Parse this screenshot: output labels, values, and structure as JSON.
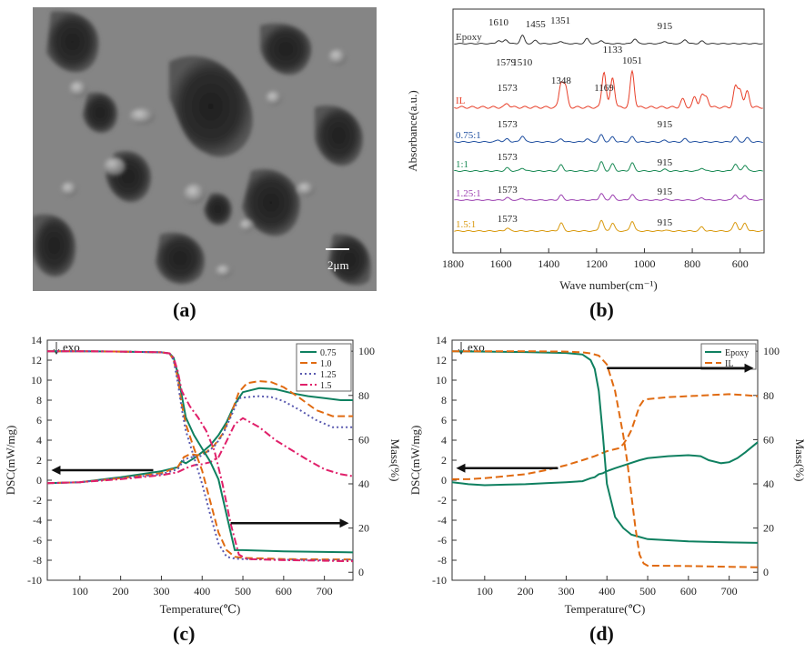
{
  "panels": {
    "a": {
      "label": "(a)",
      "scale_bar": "2μm"
    },
    "b": {
      "label": "(b)"
    },
    "c": {
      "label": "(c)"
    },
    "d": {
      "label": "(d)"
    }
  },
  "chart_data": [
    {
      "id": "b",
      "type": "line",
      "xlabel": "Wave number(cm⁻¹)",
      "ylabel": "Absorbance(a.u.)",
      "xlim": [
        1800,
        500
      ],
      "xticks": [
        1800,
        1600,
        1400,
        1200,
        1000,
        800,
        600
      ],
      "series": [
        {
          "name": "Epoxy",
          "color": "#333333",
          "offset": 0,
          "peaks": [
            [
              1610,
              0.4
            ],
            [
              1579,
              0.5
            ],
            [
              1510,
              1.0
            ],
            [
              1455,
              0.4
            ],
            [
              1351,
              0.3
            ],
            [
              1240,
              0.6
            ],
            [
              1180,
              0.4
            ],
            [
              1040,
              0.6
            ],
            [
              915,
              0.3
            ],
            [
              830,
              0.5
            ],
            [
              760,
              0.3
            ]
          ],
          "annotations": [
            "1610",
            "1579",
            "1510",
            "1455",
            "1351",
            "915"
          ]
        },
        {
          "name": "IL",
          "color": "#e8402a",
          "offset": 1,
          "peaks": [
            [
              1573,
              0.2
            ],
            [
              1348,
              1.2
            ],
            [
              1330,
              1.0
            ],
            [
              1169,
              1.8
            ],
            [
              1133,
              1.5
            ],
            [
              1051,
              1.8
            ],
            [
              840,
              0.4
            ],
            [
              790,
              0.5
            ],
            [
              760,
              0.6
            ],
            [
              740,
              0.5
            ],
            [
              620,
              1.0
            ],
            [
              600,
              0.9
            ],
            [
              570,
              0.8
            ]
          ],
          "annotations": [
            "1348",
            "1573",
            "1133",
            "1169",
            "1051"
          ]
        },
        {
          "name": "0.75:1",
          "color": "#1f4fa0",
          "offset": 2,
          "peaks": [
            [
              1610,
              0.2
            ],
            [
              1573,
              0.3
            ],
            [
              1510,
              0.6
            ],
            [
              1348,
              0.3
            ],
            [
              1240,
              0.3
            ],
            [
              1180,
              0.7
            ],
            [
              1133,
              0.5
            ],
            [
              1051,
              0.5
            ],
            [
              915,
              0.15
            ],
            [
              830,
              0.3
            ],
            [
              620,
              0.5
            ],
            [
              570,
              0.4
            ]
          ],
          "annotations": [
            "1573",
            "915"
          ]
        },
        {
          "name": "1:1",
          "color": "#1a8a55",
          "offset": 3,
          "peaks": [
            [
              1573,
              0.3
            ],
            [
              1510,
              0.3
            ],
            [
              1348,
              0.6
            ],
            [
              1180,
              0.9
            ],
            [
              1133,
              0.7
            ],
            [
              1051,
              0.8
            ],
            [
              915,
              0.15
            ],
            [
              760,
              0.3
            ],
            [
              620,
              0.7
            ],
            [
              580,
              0.6
            ]
          ],
          "annotations": [
            "1573",
            "915"
          ]
        },
        {
          "name": "1.25:1",
          "color": "#9b3fb0",
          "offset": 4,
          "peaks": [
            [
              1573,
              0.3
            ],
            [
              1510,
              0.2
            ],
            [
              1348,
              0.6
            ],
            [
              1180,
              0.8
            ],
            [
              1133,
              0.6
            ],
            [
              1051,
              0.7
            ],
            [
              915,
              0.1
            ],
            [
              760,
              0.3
            ],
            [
              620,
              0.7
            ],
            [
              580,
              0.6
            ]
          ],
          "annotations": [
            "1573",
            "915"
          ]
        },
        {
          "name": "1.5:1",
          "color": "#d99a10",
          "offset": 5,
          "peaks": [
            [
              1573,
              0.3
            ],
            [
              1348,
              0.8
            ],
            [
              1180,
              1.1
            ],
            [
              1133,
              0.8
            ],
            [
              1051,
              1.0
            ],
            [
              915,
              0.1
            ],
            [
              760,
              0.4
            ],
            [
              620,
              0.9
            ],
            [
              580,
              0.8
            ]
          ],
          "annotations": [
            "1573",
            "915"
          ]
        }
      ]
    },
    {
      "id": "c",
      "type": "line",
      "xlabel": "Temperature(℃)",
      "ylabel": "DSC(mW/mg)",
      "ylabel2": "Mass(%)",
      "xlim": [
        20,
        770
      ],
      "ylim": [
        -10,
        14
      ],
      "ylim2": [
        -3.6,
        105
      ],
      "xticks": [
        100,
        200,
        300,
        400,
        500,
        600,
        700
      ],
      "yticks": [
        -10,
        -8,
        -6,
        -4,
        -2,
        0,
        2,
        4,
        6,
        8,
        10,
        12,
        14
      ],
      "yticks2": [
        0,
        20,
        40,
        60,
        80,
        100
      ],
      "annotation": "exo",
      "legend": {
        "position": "top-right",
        "entries": [
          "0.75",
          "1.0",
          "1.25",
          "1.5"
        ]
      },
      "dsc_series": [
        {
          "name": "0.75",
          "color": "#0f8060",
          "dash": "",
          "x": [
            20,
            100,
            200,
            300,
            340,
            350,
            360,
            380,
            400,
            420,
            440,
            460,
            480,
            500,
            540,
            580,
            620,
            660,
            700,
            740,
            770
          ],
          "y": [
            -0.3,
            -0.2,
            0.3,
            0.9,
            1.3,
            1.9,
            1.7,
            2.2,
            2.8,
            3.5,
            4.5,
            5.8,
            7.6,
            8.8,
            9.2,
            9.1,
            8.7,
            8.4,
            8.2,
            8.0,
            8.0
          ]
        },
        {
          "name": "1.0",
          "color": "#e06a10",
          "dash": "8,4",
          "x": [
            20,
            100,
            200,
            300,
            340,
            355,
            370,
            390,
            410,
            430,
            450,
            470,
            490,
            510,
            540,
            570,
            600,
            640,
            680,
            720,
            770
          ],
          "y": [
            -0.3,
            -0.2,
            0.2,
            0.7,
            1.3,
            2.3,
            2.6,
            2.5,
            2.8,
            3.5,
            4.6,
            6.5,
            8.8,
            9.7,
            9.9,
            9.8,
            9.3,
            8.2,
            7.0,
            6.4,
            6.4
          ]
        },
        {
          "name": "1.25",
          "color": "#5a5ab0",
          "dash": "2,3",
          "x": [
            20,
            100,
            200,
            300,
            340,
            355,
            370,
            390,
            410,
            430,
            450,
            470,
            490,
            510,
            540,
            570,
            600,
            640,
            680,
            720,
            770
          ],
          "y": [
            -0.3,
            -0.2,
            0.2,
            0.6,
            1.1,
            2.0,
            2.3,
            2.3,
            2.7,
            3.4,
            4.5,
            6.3,
            8.2,
            8.3,
            8.4,
            8.3,
            7.9,
            7.0,
            6.0,
            5.3,
            5.3
          ]
        },
        {
          "name": "1.5",
          "color": "#e0206a",
          "dash": "8,3,2,3",
          "x": [
            20,
            100,
            200,
            300,
            340,
            360,
            380,
            400,
            420,
            440,
            460,
            480,
            500,
            540,
            580,
            620,
            660,
            700,
            740,
            770
          ],
          "y": [
            -0.3,
            -0.2,
            0.1,
            0.5,
            0.8,
            1.2,
            1.5,
            1.6,
            1.8,
            2.3,
            3.9,
            5.6,
            6.2,
            5.3,
            4.0,
            3.0,
            2.0,
            1.1,
            0.6,
            0.4
          ]
        }
      ],
      "mass_series": [
        {
          "name": "0.75",
          "color": "#0f8060",
          "dash": "",
          "x": [
            20,
            100,
            200,
            300,
            320,
            330,
            340,
            350,
            360,
            380,
            400,
            420,
            440,
            460,
            480,
            500,
            600,
            700,
            770
          ],
          "y": [
            100,
            100,
            99.8,
            99.5,
            99,
            97,
            90,
            80,
            70,
            62,
            56,
            50,
            42,
            26,
            10,
            10,
            9.5,
            9.2,
            9
          ]
        },
        {
          "name": "1.0",
          "color": "#e06a10",
          "dash": "8,4",
          "x": [
            20,
            100,
            200,
            300,
            320,
            330,
            340,
            350,
            360,
            380,
            400,
            420,
            440,
            460,
            480,
            500,
            600,
            700,
            770
          ],
          "y": [
            100,
            100,
            99.8,
            99.5,
            99,
            96,
            88,
            76,
            67,
            56,
            46,
            32,
            18,
            10,
            7,
            6.5,
            6,
            5.8,
            5.8
          ]
        },
        {
          "name": "1.25",
          "color": "#5a5ab0",
          "dash": "2,3",
          "x": [
            20,
            100,
            200,
            300,
            320,
            330,
            340,
            350,
            360,
            380,
            400,
            420,
            440,
            460,
            480,
            500,
            600,
            700,
            770
          ],
          "y": [
            100,
            100,
            99.8,
            99.5,
            99,
            96,
            86,
            74,
            64,
            52,
            40,
            26,
            13,
            7,
            6.2,
            6,
            5.7,
            5.5,
            5.5
          ]
        },
        {
          "name": "1.5",
          "color": "#e0206a",
          "dash": "8,3,2,3",
          "x": [
            20,
            100,
            200,
            300,
            320,
            330,
            340,
            350,
            370,
            390,
            410,
            430,
            450,
            470,
            490,
            510,
            600,
            700,
            770
          ],
          "y": [
            100,
            100,
            99.8,
            99.5,
            99,
            97,
            91,
            82,
            75,
            70,
            64,
            55,
            40,
            22,
            8,
            6,
            5.5,
            5.2,
            5
          ]
        }
      ],
      "arrows": [
        {
          "direction": "left"
        },
        {
          "direction": "right"
        }
      ]
    },
    {
      "id": "d",
      "type": "line",
      "xlabel": "Temperature(℃)",
      "ylabel": "DSC(mW/mg)",
      "ylabel2": "Mass(%)",
      "xlim": [
        20,
        770
      ],
      "ylim": [
        -10,
        14
      ],
      "ylim2": [
        -3.6,
        105
      ],
      "xticks": [
        100,
        200,
        300,
        400,
        500,
        600,
        700
      ],
      "yticks": [
        -10,
        -8,
        -6,
        -4,
        -2,
        0,
        2,
        4,
        6,
        8,
        10,
        12,
        14
      ],
      "yticks2": [
        0,
        20,
        40,
        60,
        80,
        100
      ],
      "annotation": "exo",
      "legend": {
        "position": "top-right",
        "entries": [
          "Epoxy",
          "IL"
        ]
      },
      "dsc_series": [
        {
          "name": "Epoxy",
          "color": "#0f8060",
          "dash": "",
          "x": [
            20,
            60,
            100,
            150,
            200,
            250,
            300,
            340,
            360,
            370,
            380,
            390,
            400,
            420,
            450,
            480,
            500,
            550,
            600,
            630,
            650,
            680,
            700,
            720,
            740,
            770
          ],
          "y": [
            -0.2,
            -0.4,
            -0.5,
            -0.45,
            -0.4,
            -0.3,
            -0.2,
            -0.1,
            0.2,
            0.3,
            0.6,
            0.7,
            0.9,
            1.2,
            1.6,
            2.0,
            2.2,
            2.4,
            2.5,
            2.4,
            2.0,
            1.7,
            1.8,
            2.2,
            2.8,
            3.8
          ]
        },
        {
          "name": "IL",
          "color": "#e06a10",
          "dash": "8,4",
          "x": [
            20,
            60,
            100,
            150,
            200,
            250,
            300,
            340,
            370,
            400,
            420,
            430,
            440,
            450,
            460,
            470,
            480,
            490,
            500,
            550,
            600,
            650,
            700,
            740,
            770
          ],
          "y": [
            0.1,
            0.1,
            0.2,
            0.4,
            0.6,
            1.0,
            1.5,
            2.0,
            2.4,
            2.9,
            3.1,
            3.2,
            3.6,
            4.2,
            5.0,
            6.2,
            7.4,
            8.0,
            8.1,
            8.3,
            8.4,
            8.5,
            8.6,
            8.5,
            8.4
          ]
        }
      ],
      "mass_series": [
        {
          "name": "Epoxy",
          "color": "#0f8060",
          "dash": "",
          "x": [
            20,
            100,
            200,
            300,
            340,
            360,
            370,
            380,
            390,
            400,
            420,
            440,
            460,
            480,
            500,
            600,
            700,
            770
          ],
          "y": [
            100,
            99.8,
            99.6,
            99.2,
            98.5,
            96,
            92,
            82,
            62,
            40,
            25,
            20,
            17,
            16,
            15,
            14,
            13.5,
            13.3
          ]
        },
        {
          "name": "IL",
          "color": "#e06a10",
          "dash": "8,4",
          "x": [
            20,
            100,
            200,
            300,
            340,
            360,
            380,
            400,
            420,
            440,
            450,
            460,
            470,
            480,
            490,
            500,
            520,
            600,
            700,
            770
          ],
          "y": [
            100,
            100,
            100,
            99.8,
            99.5,
            99,
            98,
            94,
            82,
            62,
            50,
            35,
            20,
            8,
            4,
            3,
            3,
            2.8,
            2.5,
            2.3
          ]
        }
      ],
      "arrows": [
        {
          "direction": "left"
        },
        {
          "direction": "right"
        }
      ]
    }
  ]
}
